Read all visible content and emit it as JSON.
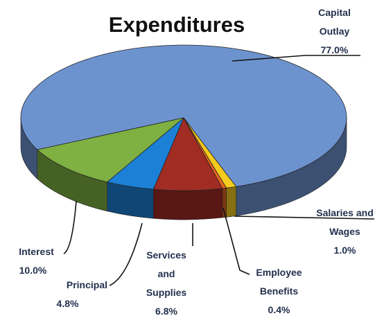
{
  "chart_data": {
    "type": "pie3d",
    "title": "Expenditures",
    "categories": [
      "Capital Outlay",
      "Salaries and Wages",
      "Employee Benefits",
      "Services and Supplies",
      "Principal",
      "Interest"
    ],
    "values": [
      77.0,
      1.0,
      0.4,
      6.8,
      4.8,
      10.0
    ],
    "value_labels": [
      "77.0%",
      "1.0%",
      "0.4%",
      "6.8%",
      "4.8%",
      "10.0%"
    ],
    "colors": [
      "#6d93cf",
      "#f4cb1e",
      "#e8651f",
      "#a12c24",
      "#1c80d6",
      "#7fb042"
    ]
  }
}
